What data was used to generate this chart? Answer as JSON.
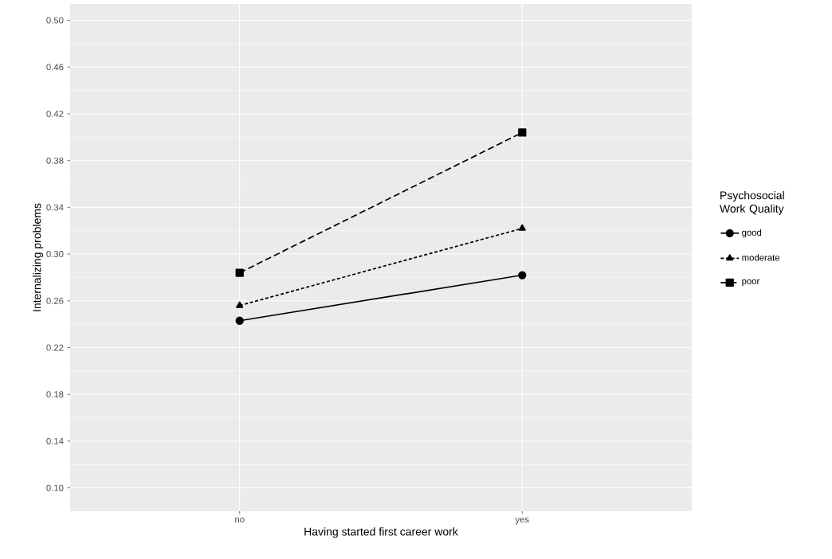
{
  "chart_data": {
    "type": "line",
    "xlabel": "Having started first career work",
    "ylabel": "Internalizing problems",
    "legend_title": "Psychosocial Work Quality",
    "categories": [
      "no",
      "yes"
    ],
    "series": [
      {
        "name": "good",
        "color": "#000000",
        "values": [
          0.243,
          0.282
        ],
        "marker": "circle",
        "line_style": "solid"
      },
      {
        "name": "moderate",
        "color": "#000000",
        "values": [
          0.256,
          0.322
        ],
        "marker": "triangle",
        "line_style": "dotted"
      },
      {
        "name": "poor",
        "color": "#000000",
        "values": [
          0.284,
          0.404
        ],
        "marker": "square",
        "line_style": "dashed"
      }
    ],
    "ylim": [
      0.08,
      0.514
    ],
    "yticks": [
      {
        "value": 0.1,
        "label": "0.10"
      },
      {
        "value": 0.14,
        "label": "0.14"
      },
      {
        "value": 0.18,
        "label": "0.18"
      },
      {
        "value": 0.22,
        "label": "0.22"
      },
      {
        "value": 0.26,
        "label": "0.26"
      },
      {
        "value": 0.3,
        "label": "0.30"
      },
      {
        "value": 0.34,
        "label": "0.34"
      },
      {
        "value": 0.38,
        "label": "0.38"
      },
      {
        "value": 0.42,
        "label": "0.42"
      },
      {
        "value": 0.46,
        "label": "0.46"
      },
      {
        "value": 0.5,
        "label": "0.50"
      }
    ],
    "grid": true,
    "legend": "right"
  }
}
